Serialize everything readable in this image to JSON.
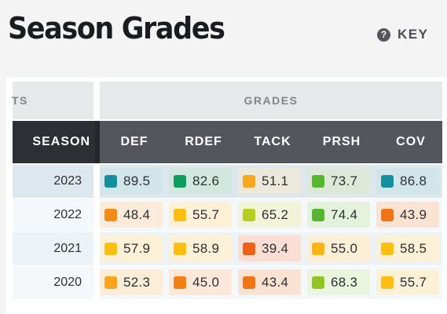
{
  "header": {
    "title": "Season Grades",
    "key_icon": "?",
    "key_label": "KEY"
  },
  "table": {
    "group_left_label": "TS",
    "group_label": "GRADES",
    "season_header": "SEASON",
    "columns": [
      "DEF",
      "RDEF",
      "TACK",
      "PRSH",
      "COV"
    ],
    "rows": [
      {
        "season": "2023",
        "row_bg": "#dde8ee",
        "grades": [
          {
            "value": "89.5",
            "color": "#13909c",
            "bg": "#d2e6ea"
          },
          {
            "value": "82.6",
            "color": "#0f9c5c",
            "bg": "#d2e8de"
          },
          {
            "value": "51.1",
            "color": "#f7a81d",
            "bg": "#ece8dc"
          },
          {
            "value": "73.7",
            "color": "#56b630",
            "bg": "#dde8d8"
          },
          {
            "value": "86.8",
            "color": "#13909c",
            "bg": "#d2e6ea"
          }
        ]
      },
      {
        "season": "2022",
        "row_bg": "#f4f8fb",
        "grades": [
          {
            "value": "48.4",
            "color": "#f28b15",
            "bg": "#fcebd9"
          },
          {
            "value": "55.7",
            "color": "#fdbe13",
            "bg": "#fcf1d6"
          },
          {
            "value": "65.2",
            "color": "#b6ce1f",
            "bg": "#f1f4d8"
          },
          {
            "value": "74.4",
            "color": "#55b431",
            "bg": "#e4f2dc"
          },
          {
            "value": "43.9",
            "color": "#f07417",
            "bg": "#fbe3d4"
          }
        ]
      },
      {
        "season": "2021",
        "row_bg": "#edf2f7",
        "grades": [
          {
            "value": "57.9",
            "color": "#fdbe13",
            "bg": "#fcf1d6"
          },
          {
            "value": "58.9",
            "color": "#fdbe13",
            "bg": "#fcf1d6"
          },
          {
            "value": "39.4",
            "color": "#ee6119",
            "bg": "#fbded3"
          },
          {
            "value": "55.0",
            "color": "#fcb515",
            "bg": "#fcefd6"
          },
          {
            "value": "58.5",
            "color": "#fdbe13",
            "bg": "#fcf1d6"
          }
        ]
      },
      {
        "season": "2020",
        "row_bg": "#f4f8fb",
        "grades": [
          {
            "value": "52.3",
            "color": "#f9a41c",
            "bg": "#fcedd6"
          },
          {
            "value": "45.0",
            "color": "#f28013",
            "bg": "#fce7d8"
          },
          {
            "value": "43.4",
            "color": "#f07417",
            "bg": "#fbe3d4"
          },
          {
            "value": "68.3",
            "color": "#8ec522",
            "bg": "#ebf4dc"
          },
          {
            "value": "55.7",
            "color": "#fdbe13",
            "bg": "#fcf1d6"
          }
        ]
      }
    ]
  }
}
